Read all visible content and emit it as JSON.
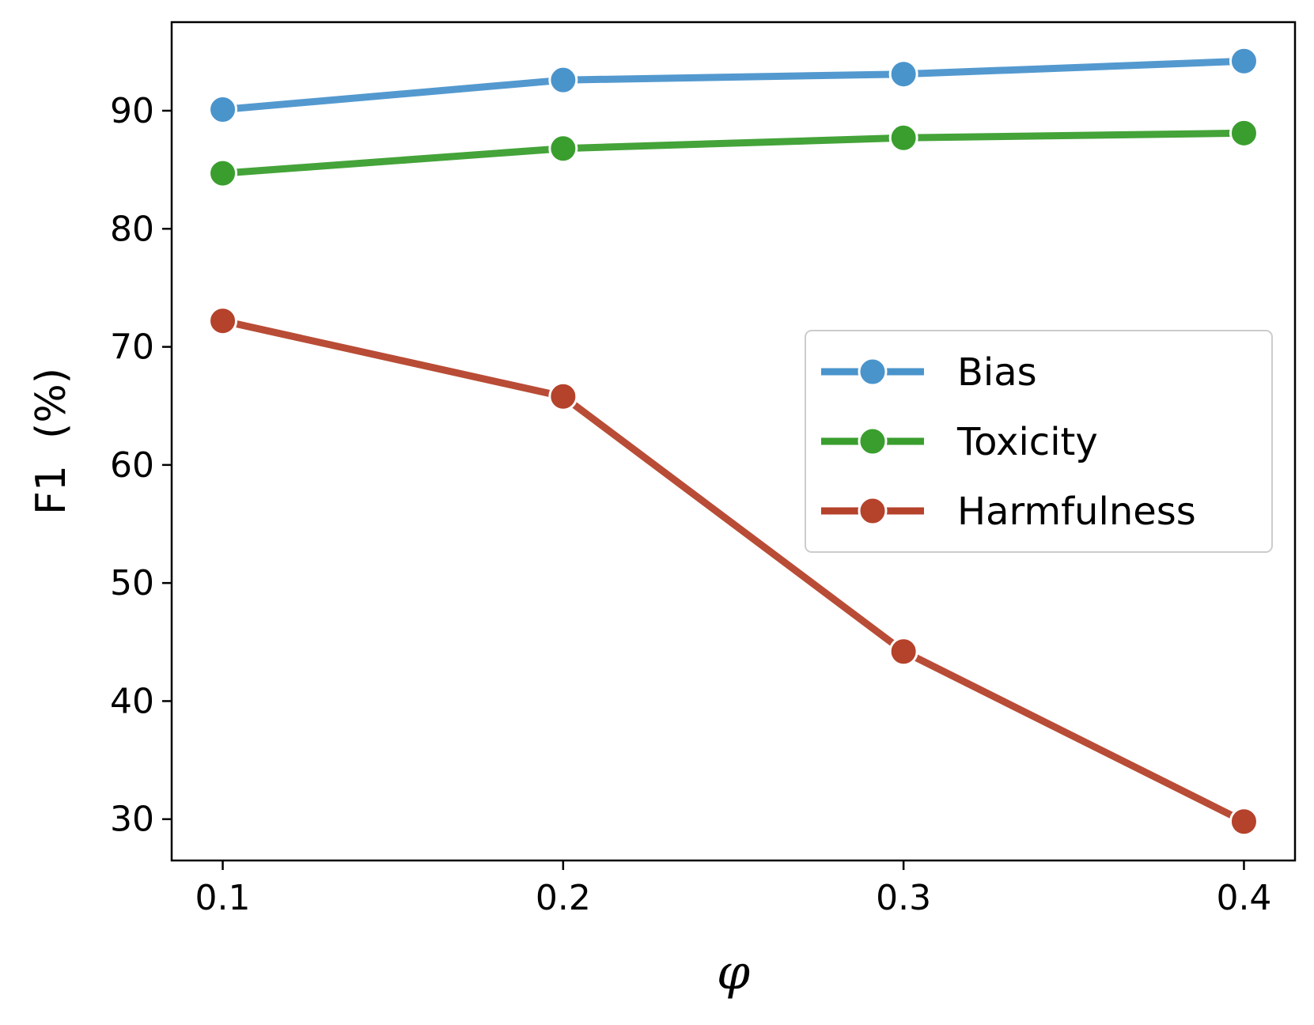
{
  "chart_data": {
    "type": "line",
    "title": "",
    "xlabel": "φ",
    "ylabel": "F1  (%)",
    "x": [
      0.1,
      0.2,
      0.3,
      0.4
    ],
    "x_tick_labels": [
      "0.1",
      "0.2",
      "0.3",
      "0.4"
    ],
    "y_ticks": [
      30,
      40,
      50,
      60,
      70,
      80,
      90
    ],
    "ylim": [
      26.5,
      97.5
    ],
    "xlim": [
      0.085,
      0.415
    ],
    "grid": false,
    "legend_position": "center-right",
    "series": [
      {
        "name": "Bias",
        "color": "#4a94cc",
        "values": [
          90.1,
          92.6,
          93.1,
          94.2
        ]
      },
      {
        "name": "Toxicity",
        "color": "#3a9e2e",
        "values": [
          84.7,
          86.8,
          87.7,
          88.1
        ]
      },
      {
        "name": "Harmfulness",
        "color": "#b5422b",
        "values": [
          72.2,
          65.8,
          44.2,
          29.8
        ]
      }
    ]
  }
}
